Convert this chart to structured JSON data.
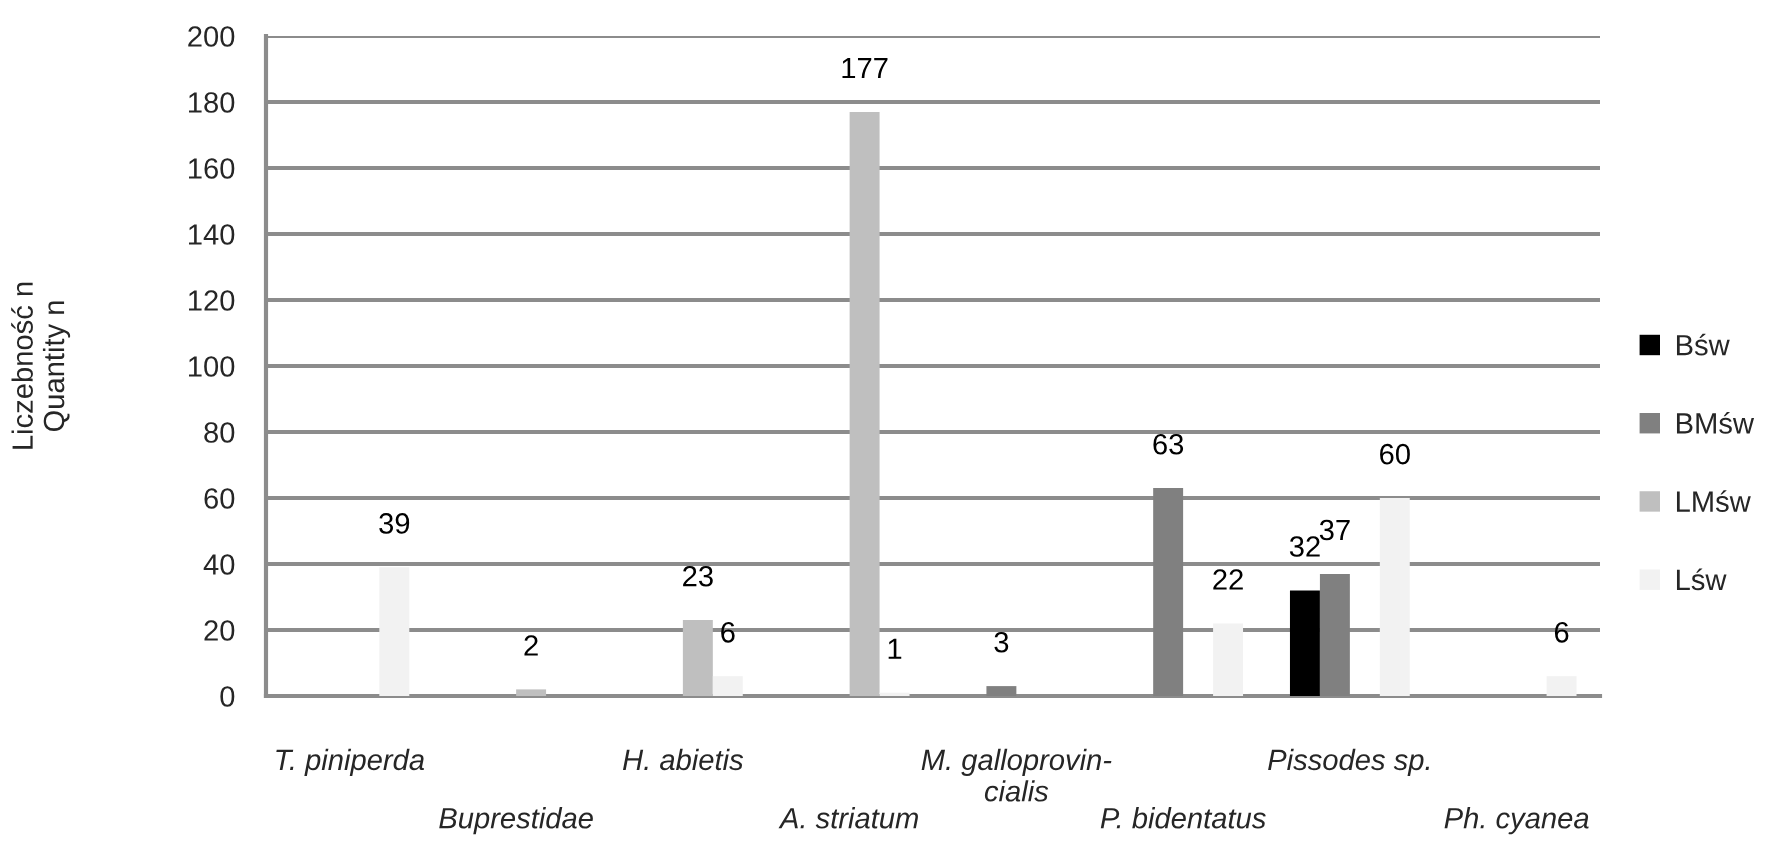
{
  "chart_data": {
    "type": "bar",
    "ylabel": "Liczebność n\nQuantity n",
    "categories": [
      "T. piniperda",
      "Buprestidae",
      "H. abietis",
      "A. striatum",
      "M. galloprovin-\ncialis",
      "P. bidentatus",
      "Pissodes sp.",
      "Ph. cyanea"
    ],
    "series": [
      {
        "name": "Bśw",
        "color": "#000000",
        "values": [
          null,
          null,
          null,
          null,
          null,
          null,
          32,
          null
        ]
      },
      {
        "name": "BMśw",
        "color": "#808080",
        "values": [
          null,
          null,
          null,
          null,
          3,
          63,
          37,
          null
        ]
      },
      {
        "name": "LMśw",
        "color": "#bfbfbf",
        "values": [
          null,
          2,
          23,
          177,
          null,
          null,
          null,
          null
        ]
      },
      {
        "name": "Lśw",
        "color": "#f2f2f2",
        "values": [
          39,
          null,
          6,
          1,
          null,
          22,
          60,
          6
        ]
      }
    ],
    "ylim": [
      0,
      200
    ],
    "yticks": [
      0,
      20,
      40,
      60,
      80,
      100,
      120,
      140,
      160,
      180,
      200
    ],
    "grid": "y",
    "legend": "right",
    "data_labels": true
  }
}
